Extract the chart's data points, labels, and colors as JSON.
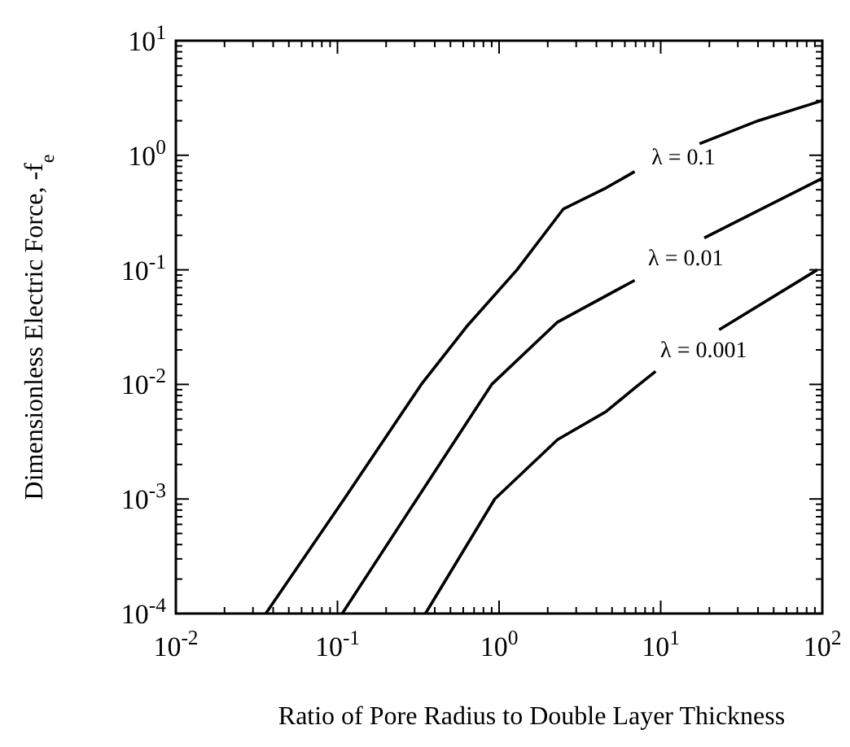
{
  "chart_data": {
    "type": "line",
    "xlabel": "Ratio of Pore Radius to Double Layer Thickness",
    "ylabel": "Dimensionless Electric Force, -f$_{e}$",
    "log": "xy",
    "grid": false,
    "marker": "none",
    "line_style": "solid",
    "xlim": [
      0.01,
      100
    ],
    "ylim": [
      0.0001,
      10
    ],
    "xticks": [
      {
        "value": 0.01,
        "label": "10$^{-2}$"
      },
      {
        "value": 0.1,
        "label": "10$^{-1}$"
      },
      {
        "value": 1,
        "label": "10$^{0}$"
      },
      {
        "value": 10,
        "label": "10$^{1}$"
      },
      {
        "value": 100,
        "label": "10$^{2}$"
      }
    ],
    "yticks": [
      {
        "value": 0.0001,
        "label": "10$^{-4}$"
      },
      {
        "value": 0.001,
        "label": "10$^{-3}$"
      },
      {
        "value": 0.01,
        "label": "10$^{-2}$"
      },
      {
        "value": 0.1,
        "label": "10$^{-1}$"
      },
      {
        "value": 1,
        "label": "10$^{0}$"
      },
      {
        "value": 10,
        "label": "10$^{1}$"
      }
    ],
    "series": [
      {
        "name": "λ = 0.1",
        "color": "#000000",
        "x": [
          0.036,
          0.11,
          0.33,
          0.63,
          1.29,
          2.5,
          4.6,
          6.9,
          12,
          17.4,
          40,
          100
        ],
        "values": [
          0.0001,
          0.001,
          0.01,
          0.032,
          0.1,
          0.34,
          0.52,
          0.72,
          null,
          1.26,
          2.0,
          3.0
        ]
      },
      {
        "name": "λ = 0.01",
        "color": "#000000",
        "x": [
          0.107,
          0.31,
          0.9,
          2.3,
          6.9,
          12,
          18.6,
          100
        ],
        "values": [
          0.0001,
          0.001,
          0.01,
          0.035,
          0.081,
          null,
          0.19,
          0.63
        ]
      },
      {
        "name": "λ = 0.001",
        "color": "#000000",
        "x": [
          0.35,
          0.94,
          2.3,
          4.6,
          6.9,
          9.3,
          15,
          23,
          93
        ],
        "values": [
          0.0001,
          0.001,
          0.0033,
          0.0058,
          0.0093,
          0.013,
          null,
          0.03,
          0.1
        ]
      }
    ]
  }
}
